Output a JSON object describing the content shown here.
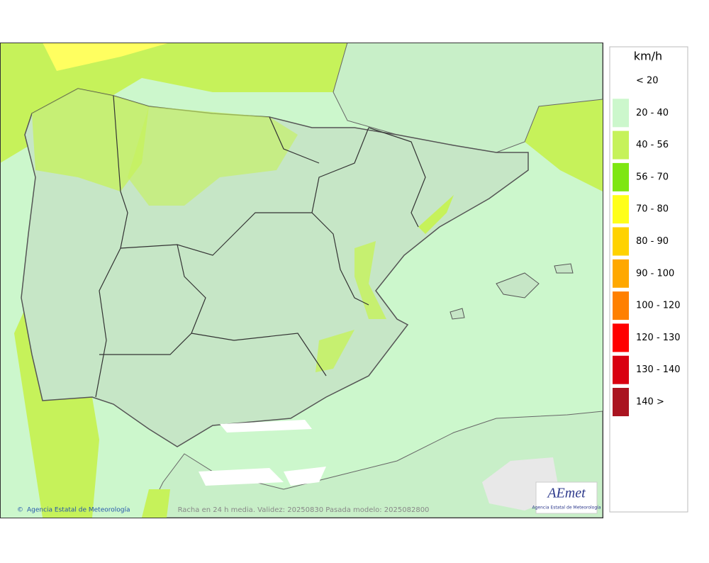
{
  "legend": {
    "title": "km/h",
    "items": [
      {
        "label": "< 20",
        "color": "#ffffff"
      },
      {
        "label": "20 - 40",
        "color": "#ccf7cc"
      },
      {
        "label": "40 - 56",
        "color": "#c6f25a"
      },
      {
        "label": "56 - 70",
        "color": "#7ee612"
      },
      {
        "label": "70 - 80",
        "color": "#ffff1a"
      },
      {
        "label": "80 - 90",
        "color": "#ffd200"
      },
      {
        "label": "90 - 100",
        "color": "#ffa800"
      },
      {
        "label": "100 - 120",
        "color": "#ff8000"
      },
      {
        "label": "120 - 130",
        "color": "#ff0000"
      },
      {
        "label": "130 - 140",
        "color": "#d90010"
      },
      {
        "label": "140 >",
        "color": "#aa1420"
      }
    ]
  },
  "map": {
    "credit": "Agencia Estatal de Meteorología",
    "caption": "Racha en 24 h media. Validez: 20250830 Pasada modelo: 2025082800",
    "logo": {
      "mark": "AEmet",
      "name": "Agencia Estatal de Meteorología"
    }
  }
}
